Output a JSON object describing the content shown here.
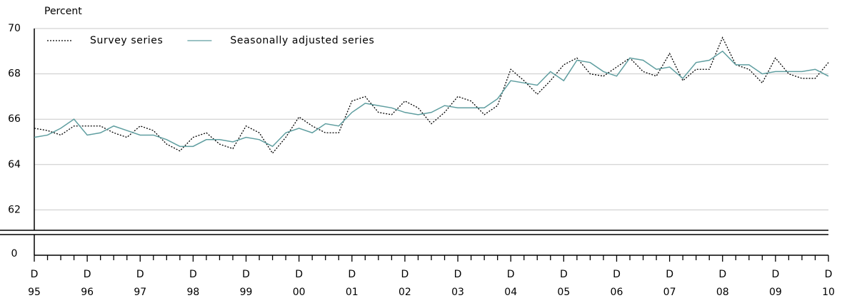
{
  "chart_data": {
    "type": "line",
    "y_label": "Percent",
    "categories": [
      "D 95",
      null,
      null,
      null,
      "D 96",
      null,
      null,
      null,
      "D 97",
      null,
      null,
      null,
      "D 98",
      null,
      null,
      null,
      "D 99",
      null,
      null,
      null,
      "D 00",
      null,
      null,
      null,
      "D 01",
      null,
      null,
      null,
      "D 02",
      null,
      null,
      null,
      "D 03",
      null,
      null,
      null,
      "D 04",
      null,
      null,
      null,
      "D 05",
      null,
      null,
      null,
      "D 06",
      null,
      null,
      null,
      "D 07",
      null,
      null,
      null,
      "D 08",
      null,
      null,
      null,
      "D 09",
      null,
      null,
      null,
      "D 10"
    ],
    "series": [
      {
        "name": "Survey series",
        "color": "#000000",
        "dash": true,
        "values": [
          65.6,
          65.5,
          65.3,
          65.7,
          65.7,
          65.7,
          65.4,
          65.2,
          65.7,
          65.5,
          64.9,
          64.6,
          65.2,
          65.4,
          64.9,
          64.7,
          65.7,
          65.4,
          64.5,
          65.2,
          66.1,
          65.7,
          65.4,
          65.4,
          66.8,
          67.0,
          66.3,
          66.2,
          66.8,
          66.5,
          65.8,
          66.3,
          67.0,
          66.8,
          66.2,
          66.6,
          68.2,
          67.7,
          67.1,
          67.7,
          68.4,
          68.7,
          68.0,
          67.9,
          68.3,
          68.7,
          68.1,
          67.9,
          68.9,
          67.7,
          68.2,
          68.2,
          69.6,
          68.4,
          68.2,
          67.6,
          68.7,
          68.0,
          67.8,
          67.8,
          68.5
        ]
      },
      {
        "name": "Seasonally adjusted series",
        "color": "#5f9ea0",
        "dash": false,
        "values": [
          65.2,
          65.3,
          65.6,
          66.0,
          65.3,
          65.4,
          65.7,
          65.5,
          65.3,
          65.3,
          65.1,
          64.8,
          64.8,
          65.1,
          65.1,
          65.0,
          65.2,
          65.1,
          64.8,
          65.4,
          65.6,
          65.4,
          65.8,
          65.7,
          66.3,
          66.7,
          66.6,
          66.5,
          66.3,
          66.2,
          66.3,
          66.6,
          66.5,
          66.5,
          66.5,
          66.9,
          67.7,
          67.6,
          67.5,
          68.1,
          67.7,
          68.6,
          68.5,
          68.1,
          67.9,
          68.7,
          68.6,
          68.2,
          68.3,
          67.8,
          68.5,
          68.6,
          69.0,
          68.4,
          68.4,
          68.0,
          68.1,
          68.1,
          68.1,
          68.2,
          67.9
        ]
      }
    ],
    "ylim": [
      61.1,
      70
    ],
    "yticks": [
      0,
      62,
      64,
      66,
      68,
      70
    ],
    "axis_break": true,
    "grid": true
  }
}
